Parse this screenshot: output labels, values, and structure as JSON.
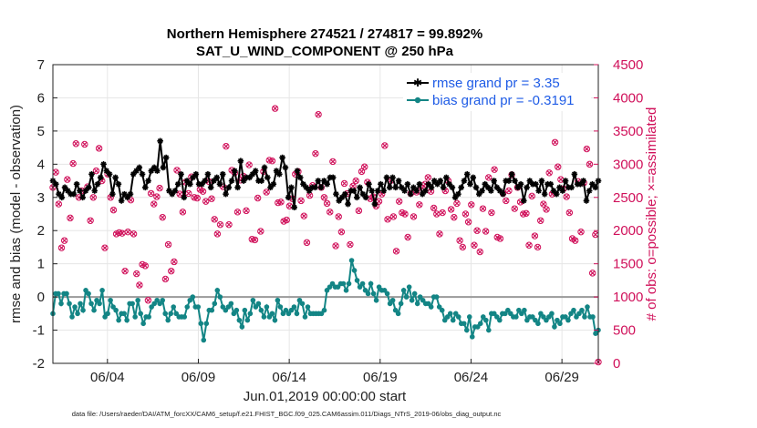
{
  "chart_data": {
    "type": "line",
    "title_line1": "Northern Hemisphere 274521 / 274817 = 99.892%",
    "title_line2": "SAT_U_WIND_COMPONENT @ 250 hPa",
    "xlabel": "Jun.01,2019 00:00:00 start",
    "ylabel_left": "rmse and bias (model - observation)",
    "ylabel_right": "# of obs: o=possible; ×=assimilated",
    "footnote": "data file: /Users/raeder/DAI/ATM_forcXX/CAM6_setup/f.e21.FHIST_BGC.f09_025.CAM6assim.011/Diags_NTrS_2019-06/obs_diag_output.nc",
    "x_range": [
      1.0,
      31.0
    ],
    "ylim_left": [
      -2,
      7
    ],
    "ylim_right": [
      0,
      4500
    ],
    "yticks_left": [
      "-2",
      "-1",
      "0",
      "1",
      "2",
      "3",
      "4",
      "5",
      "6",
      "7"
    ],
    "yticks_right": [
      "0",
      "500",
      "1000",
      "1500",
      "2000",
      "2500",
      "3000",
      "3500",
      "4000",
      "4500"
    ],
    "xticks": [
      {
        "value": 4,
        "label": "06/04"
      },
      {
        "value": 9,
        "label": "06/09"
      },
      {
        "value": 14,
        "label": "06/14"
      },
      {
        "value": 19,
        "label": "06/19"
      },
      {
        "value": 24,
        "label": "06/24"
      },
      {
        "value": 29,
        "label": "06/29"
      }
    ],
    "x_step_days": 0.25,
    "series": [
      {
        "name": "rmse",
        "legend": "rmse grand pr = 3.35",
        "color": "#000000",
        "values": [
          3.5,
          3.4,
          3.1,
          3.0,
          3.3,
          3.2,
          3.1,
          3.1,
          3.4,
          3.2,
          3.0,
          3.2,
          3.3,
          3.7,
          3.2,
          3.4,
          3.6,
          4.0,
          3.8,
          3.7,
          3.1,
          3.6,
          3.4,
          2.9,
          3.1,
          3.0,
          3.1,
          3.7,
          3.8,
          3.9,
          3.7,
          3.3,
          3.5,
          3.8,
          3.9,
          3.8,
          4.7,
          3.9,
          4.2,
          3.2,
          3.1,
          3.2,
          3.4,
          3.7,
          3.0,
          3.5,
          3.4,
          3.6,
          3.7,
          3.4,
          3.4,
          3.5,
          3.7,
          3.3,
          3.5,
          3.6,
          3.4,
          3.7,
          3.1,
          3.3,
          3.5,
          3.8,
          3.3,
          4.1,
          3.5,
          3.6,
          3.6,
          3.7,
          3.8,
          3.5,
          3.5,
          3.9,
          3.6,
          3.3,
          3.4,
          3.8,
          3.7,
          4.2,
          3.9,
          3.0,
          3.3,
          2.7,
          3.8,
          3.6,
          3.4,
          3.3,
          3.2,
          3.3,
          3.3,
          3.5,
          3.3,
          3.5,
          3.4,
          3.6,
          3.6,
          3.1,
          2.9,
          3.0,
          3.1,
          2.8,
          3.2,
          3.2,
          3.0,
          3.3,
          3.1,
          3.0,
          3.4,
          3.2,
          2.8,
          3.2,
          3.4,
          3.2,
          3.6,
          3.3,
          3.6,
          3.3,
          3.5,
          3.3,
          3.2,
          3.4,
          3.1,
          3.3,
          3.2,
          3.4,
          3.1,
          3.2,
          3.4,
          3.3,
          3.5,
          3.4,
          3.5,
          3.3,
          3.6,
          3.4,
          3.3,
          3.0,
          3.1,
          3.3,
          3.5,
          3.7,
          3.4,
          3.6,
          3.3,
          3.1,
          3.2,
          3.4,
          3.3,
          3.2,
          3.5,
          3.3,
          3.2,
          3.1,
          3.5,
          3.5,
          3.7,
          3.5,
          3.3,
          3.4,
          2.9,
          3.3,
          3.5,
          3.4,
          3.4,
          3.2,
          3.5,
          3.1,
          3.4,
          3.4,
          3.2,
          3.1,
          3.3,
          3.2,
          3.5,
          3.3,
          3.3,
          3.7,
          3.4,
          3.4,
          3.5,
          2.9,
          3.2,
          3.4,
          3.3,
          3.5
        ]
      },
      {
        "name": "bias",
        "legend": "bias grand pr = -0.3191",
        "color": "#138585",
        "values": [
          -0.5,
          0.1,
          0.1,
          -0.2,
          0.1,
          0.1,
          -0.2,
          -0.6,
          -0.3,
          -0.5,
          -0.2,
          -0.4,
          0.2,
          0.1,
          -0.2,
          -0.4,
          -0.1,
          -0.2,
          0.2,
          -0.6,
          -0.5,
          -0.1,
          -0.3,
          -0.4,
          -0.7,
          -0.5,
          -0.5,
          -0.7,
          -0.2,
          -0.2,
          -0.6,
          -0.1,
          -0.5,
          -0.8,
          -0.6,
          -0.6,
          -0.3,
          -0.2,
          -0.1,
          -0.2,
          -0.1,
          -0.5,
          -0.7,
          -0.5,
          -0.3,
          -0.5,
          -0.6,
          -0.6,
          -0.6,
          -0.3,
          -0.1,
          0.0,
          -0.3,
          -0.3,
          -0.8,
          -1.3,
          -0.8,
          -0.4,
          -0.4,
          -0.2,
          0.2,
          0.0,
          -0.3,
          -0.4,
          -0.3,
          -0.2,
          -0.5,
          -0.4,
          -0.7,
          -0.9,
          -0.4,
          -0.7,
          -0.5,
          -0.1,
          -0.3,
          -0.2,
          -0.4,
          -0.6,
          -0.3,
          -0.6,
          -0.5,
          -0.7,
          -0.1,
          -0.3,
          -0.5,
          -0.4,
          -0.5,
          -0.4,
          -0.3,
          -0.5,
          -0.1,
          -0.2,
          -0.6,
          -0.3,
          -0.5,
          -0.5,
          -0.5,
          -0.5,
          -0.5,
          -0.4,
          0.2,
          0.3,
          0.4,
          0.3,
          0.3,
          0.4,
          0.4,
          0.2,
          0.4,
          1.1,
          0.8,
          0.5,
          0.3,
          0.4,
          0.2,
          0.1,
          0.4,
          0.1,
          -0.1,
          0.3,
          0.2,
          0.2,
          0.1,
          -0.2,
          -0.1,
          -0.4,
          -0.5,
          -0.2,
          0.2,
          0.0,
          0.3,
          -0.1,
          0.1,
          -0.2,
          0.0,
          -0.1,
          -0.2,
          -0.2,
          -0.3,
          0.0,
          0.0,
          -0.3,
          -0.4,
          -0.7,
          -0.6,
          -0.5,
          -0.7,
          -0.5,
          -0.6,
          -0.8,
          -0.8,
          -1.0,
          -0.6,
          -1.2,
          -0.9,
          -0.9,
          -0.8,
          -0.6,
          -0.7,
          -1.0,
          -0.5,
          -0.5,
          -0.6,
          -0.7,
          -0.5,
          -0.5,
          -0.4,
          -0.5,
          -0.6,
          -0.6,
          -0.4,
          -0.5,
          -0.4,
          -0.7,
          -0.6,
          -0.6,
          -0.7,
          -0.8,
          -0.5,
          -0.6,
          -0.7,
          -0.6,
          -0.5,
          -0.9,
          -0.7,
          -0.8,
          -0.6,
          -0.6,
          -0.7,
          -0.5,
          -0.4,
          -0.6,
          -0.5,
          -0.4,
          -0.6,
          -0.3,
          -0.6,
          -0.6,
          -1.1,
          -1.0
        ]
      }
    ],
    "obs_counts": {
      "possible_color": "#d0105a",
      "assimilated_color": "#d0105a",
      "values": [
        2650,
        2880,
        2400,
        1740,
        1850,
        2770,
        2190,
        3010,
        3310,
        2500,
        2600,
        3300,
        2660,
        2150,
        2500,
        2900,
        3240,
        2750,
        1740,
        2850,
        2500,
        2310,
        1950,
        1970,
        1960,
        1390,
        1980,
        2460,
        1950,
        1350,
        1180,
        1490,
        1470,
        950,
        2560,
        2400,
        2510,
        2640,
        2200,
        1270,
        1790,
        1390,
        1530,
        2910,
        2550,
        2280,
        2730,
        2560,
        2810,
        2500,
        2490,
        2620,
        2590,
        2440,
        2740,
        2480,
        2170,
        1950,
        2090,
        2660,
        3270,
        2090,
        2910,
        2870,
        2280,
        2760,
        2820,
        2300,
        2990,
        1870,
        1860,
        2490,
        1990,
        2890,
        2580,
        3060,
        3050,
        3840,
        2420,
        2430,
        2140,
        2160,
        2370,
        2480,
        2850,
        2890,
        2450,
        2220,
        1820,
        2530,
        2680,
        3160,
        3750,
        2650,
        2500,
        2410,
        2280,
        3040,
        1770,
        2210,
        1980,
        2710,
        2560,
        1790,
        2670,
        2750,
        2300,
        2890,
        2960,
        2730,
        2480,
        2510,
        2370,
        2440,
        2550,
        3280,
        2170,
        2750,
        2210,
        1690,
        2440,
        2270,
        2250,
        1900,
        2560,
        2210,
        2580,
        2390,
        2640,
        2700,
        2800,
        2590,
        2340,
        2250,
        1950,
        2270,
        2600,
        2750,
        2320,
        2200,
        2410,
        1850,
        1750,
        2250,
        2130,
        2390,
        1780,
        2000,
        1680,
        2330,
        1990,
        2800,
        2270,
        2920,
        1900,
        1880,
        2560,
        2450,
        2600,
        2840,
        2330,
        2650,
        2430,
        2250,
        2260,
        1780,
        2520,
        1920,
        1750,
        2150,
        2400,
        2320,
        2870,
        2550,
        3330,
        2960,
        2770,
        2630,
        2510,
        2270,
        1880,
        1850,
        2740,
        1980,
        2720,
        3230,
        3000,
        1360,
        1940,
        20
      ]
    },
    "legend_placement": "top-right"
  }
}
